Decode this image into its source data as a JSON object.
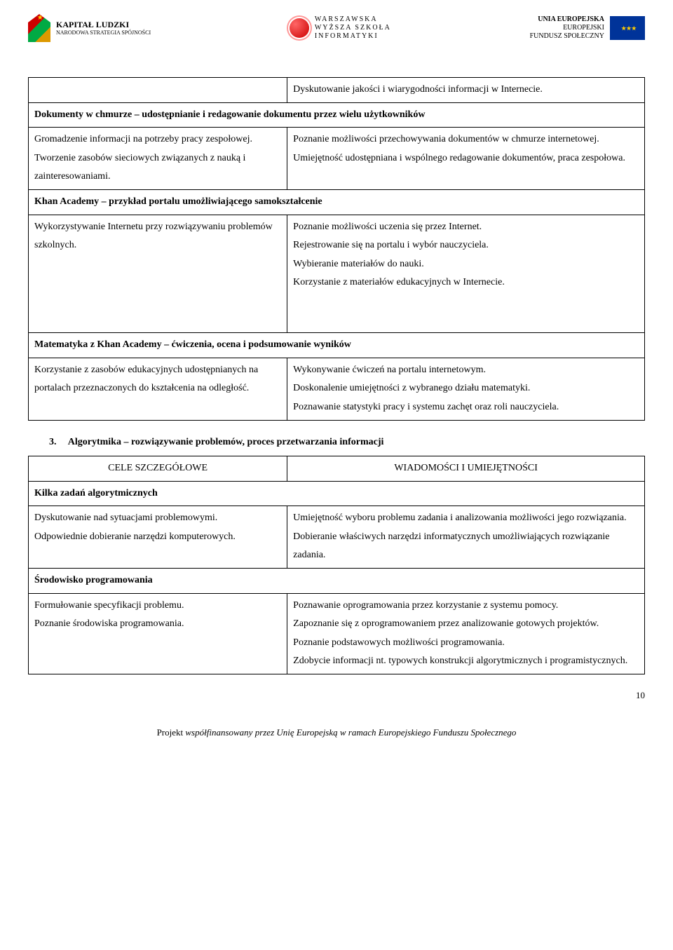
{
  "logos": {
    "kl_line1": "KAPITAŁ LUDZKI",
    "kl_line2": "NARODOWA STRATEGIA SPÓJNOŚCI",
    "wwsi_line1": "WARSZAWSKA",
    "wwsi_line2": "WYŻSZA SZKOŁA",
    "wwsi_line3": "INFORMATYKI",
    "eu_line1": "UNIA EUROPEJSKA",
    "eu_line2": "EUROPEJSKI",
    "eu_line3": "FUNDUSZ SPOŁECZNY"
  },
  "table1": {
    "row0_right": "Dyskutowanie jakości i wiarygodności informacji w Internecie.",
    "sec1_head": "Dokumenty w chmurze – udostępnianie i redagowanie dokumentu przez wielu użytkowników",
    "sec1_left": "Gromadzenie informacji na potrzeby pracy zespołowej.\nTworzenie zasobów sieciowych związanych z nauką i zainteresowaniami.",
    "sec1_right": "Poznanie możliwości przechowywania dokumentów w chmurze internetowej.\nUmiejętność udostępniana i wspólnego redagowanie dokumentów, praca zespołowa.",
    "sec2_head": "Khan Academy – przykład portalu umożliwiającego samokształcenie",
    "sec2_left": "Wykorzystywanie Internetu przy rozwiązywaniu problemów szkolnych.",
    "sec2_right": "Poznanie możliwości uczenia się przez Internet.\nRejestrowanie się na portalu i wybór nauczyciela.\nWybieranie materiałów do nauki.\nKorzystanie z materiałów edukacyjnych w Internecie.",
    "sec3_head": "Matematyka z Khan Academy – ćwiczenia, ocena i podsumowanie wyników",
    "sec3_left": "Korzystanie z zasobów edukacyjnych udostępnianych na portalach przeznaczonych do kształcenia na odległość.",
    "sec3_right": "Wykonywanie ćwiczeń na portalu internetowym.\nDoskonalenie umiejętności z wybranego działu matematyki.\nPoznawanie statystyki pracy i systemu zachęt oraz roli nauczyciela."
  },
  "section3": {
    "num": "3.",
    "title": "Algorytmika – rozwiązywanie problemów, proces przetwarzania informacji"
  },
  "table2": {
    "th_left": "CELE SZCZEGÓŁOWE",
    "th_right": "WIADOMOŚCI I UMIEJĘTNOŚCI",
    "sec1_head": "Kilka zadań algorytmicznych",
    "sec1_left": "Dyskutowanie nad sytuacjami problemowymi.\nOdpowiednie dobieranie narzędzi komputerowych.",
    "sec1_right": "Umiejętność wyboru problemu zadania i analizowania możliwości jego rozwiązania.\nDobieranie właściwych narzędzi informatycznych umożliwiających rozwiązanie zadania.",
    "sec2_head": "Środowisko programowania",
    "sec2_left": "Formułowanie specyfikacji problemu.\nPoznanie środowiska programowania.",
    "sec2_right": "Poznawanie oprogramowania przez korzystanie z systemu pomocy.\nZapoznanie się z oprogramowaniem przez analizowanie gotowych projektów.\nPoznanie podstawowych możliwości programowania.\nZdobycie informacji nt. typowych konstrukcji algorytmicznych i programistycznych."
  },
  "footer": {
    "prefix": "Projekt ",
    "text": "współfinansowany przez Unię Europejską w ramach Europejskiego Funduszu Społecznego",
    "page": "10"
  }
}
